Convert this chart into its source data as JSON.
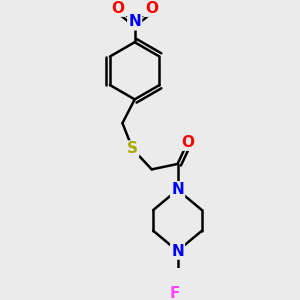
{
  "bg_color": "#ebebeb",
  "bond_color": "#000000",
  "bond_width": 1.8,
  "atom_colors": {
    "N": "#0000ff",
    "O": "#ff0000",
    "S": "#aaaa00",
    "F": "#ff44ff",
    "C": "#000000"
  },
  "font_size_atom": 11
}
